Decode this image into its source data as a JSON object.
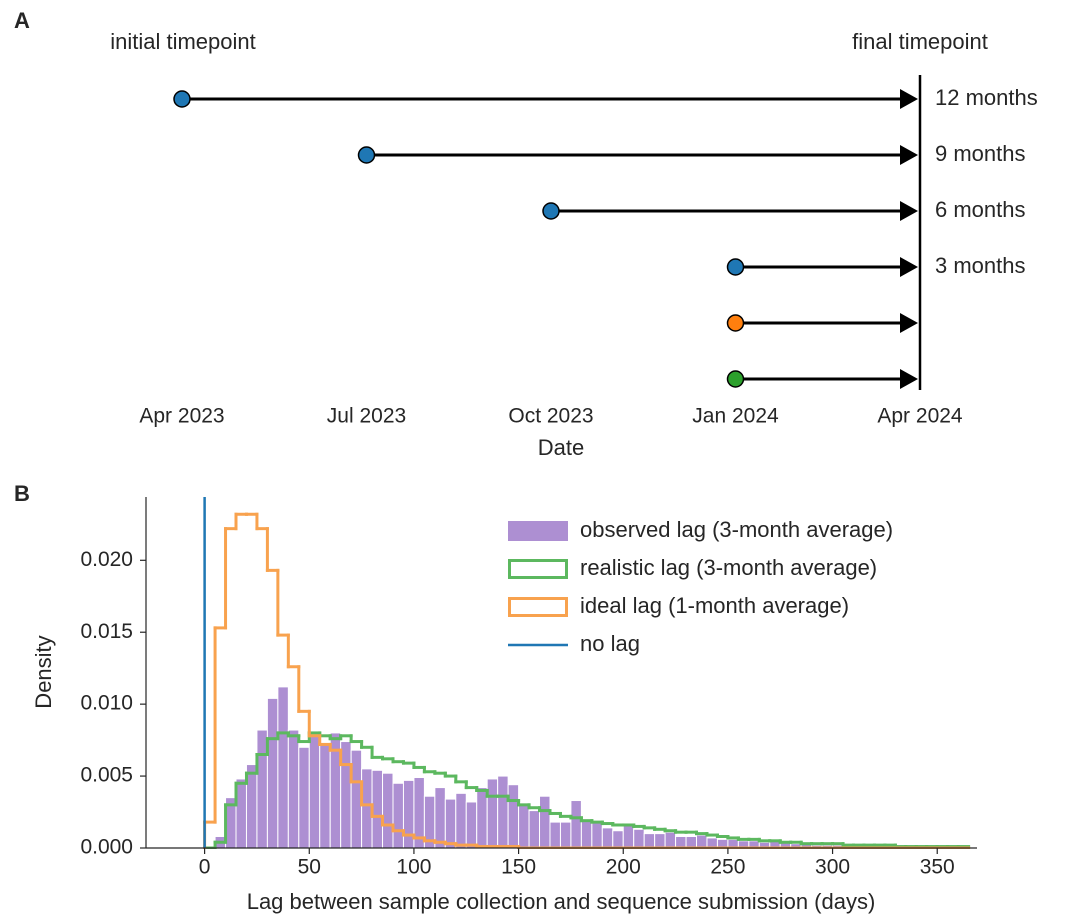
{
  "chart_data": [
    {
      "panel": "A",
      "type": "timeline",
      "xlabel": "Date",
      "start_label": "initial timepoint",
      "end_label": "final timepoint",
      "end": "2024-04",
      "xlim": [
        "2023-04",
        "2024-04"
      ],
      "xticks": [
        {
          "value": "2023-04",
          "label": "Apr 2023"
        },
        {
          "value": "2023-07",
          "label": "Jul 2023"
        },
        {
          "value": "2023-10",
          "label": "Oct 2023"
        },
        {
          "value": "2024-01",
          "label": "Jan 2024"
        },
        {
          "value": "2024-04",
          "label": "Apr 2024"
        }
      ],
      "rows": [
        {
          "start": "2023-04",
          "label": "12 months",
          "color": "#1f77b4"
        },
        {
          "start": "2023-07",
          "label": "9 months",
          "color": "#1f77b4"
        },
        {
          "start": "2023-10",
          "label": "6 months",
          "color": "#1f77b4"
        },
        {
          "start": "2024-01",
          "label": "3 months",
          "color": "#1f77b4"
        },
        {
          "start": "2024-01",
          "color": "#ff7f0e"
        },
        {
          "start": "2024-01",
          "color": "#2ca02c"
        }
      ]
    },
    {
      "panel": "B",
      "type": "histogram",
      "xlabel": "Lag between sample collection and sequence submission (days)",
      "ylabel": "Density",
      "xlim": [
        -28,
        369
      ],
      "ylim": [
        0,
        0.0244
      ],
      "xticks": [
        0,
        50,
        100,
        150,
        200,
        250,
        300,
        350
      ],
      "yticks": [
        {
          "value": 0,
          "label": "0.000"
        },
        {
          "value": 0.005,
          "label": "0.005"
        },
        {
          "value": 0.01,
          "label": "0.010"
        },
        {
          "value": 0.015,
          "label": "0.015"
        },
        {
          "value": 0.02,
          "label": "0.020"
        }
      ],
      "legend": "upper right",
      "bins": [
        0,
        5,
        10,
        15,
        20,
        25,
        30,
        35,
        40,
        45,
        50,
        55,
        60,
        65,
        70,
        75,
        80,
        85,
        90,
        95,
        100,
        105,
        110,
        115,
        120,
        125,
        130,
        135,
        140,
        145,
        150,
        155,
        160,
        165,
        170,
        175,
        180,
        185,
        190,
        195,
        200,
        205,
        210,
        215,
        220,
        225,
        230,
        235,
        240,
        245,
        250,
        255,
        260,
        265,
        270,
        275,
        280,
        285,
        290,
        295,
        300,
        305,
        310,
        315,
        320,
        325,
        330,
        335,
        340,
        345,
        350,
        355,
        360,
        365
      ],
      "series": [
        {
          "name": "observed lag (3-month average)",
          "style": "bar",
          "color": "#ad8fd2",
          "values": [
            0,
            0.0008,
            0.0035,
            0.0048,
            0.0058,
            0.0082,
            0.0104,
            0.0112,
            0.0082,
            0.007,
            0.0078,
            0.0072,
            0.008,
            0.0074,
            0.0068,
            0.0055,
            0.0054,
            0.0052,
            0.0045,
            0.0047,
            0.0049,
            0.0036,
            0.0042,
            0.0034,
            0.0038,
            0.0032,
            0.0042,
            0.0048,
            0.005,
            0.0044,
            0.003,
            0.0026,
            0.0036,
            0.0018,
            0.0018,
            0.0033,
            0.002,
            0.0018,
            0.0014,
            0.0012,
            0.0016,
            0.0013,
            0.001,
            0.001,
            0.0011,
            0.0008,
            0.0008,
            0.0009,
            0.0007,
            0.0006,
            0.0006,
            0.0005,
            0.0005,
            0.0004,
            0.0005,
            0.0004,
            0.0003,
            0.0004,
            0.0002,
            0.0002,
            0.0002,
            0.0002,
            0.0001,
            0.0001,
            0.0001,
            0.0001,
            0.0001,
            0.0001,
            0,
            0.0001,
            0,
            0,
            0
          ]
        },
        {
          "name": "realistic lag (3-month average)",
          "style": "step",
          "color": "#5cb85f",
          "values": [
            0,
            0.0004,
            0.003,
            0.0045,
            0.0052,
            0.0065,
            0.0076,
            0.008,
            0.0078,
            0.0074,
            0.008,
            0.0078,
            0.0076,
            0.0078,
            0.0074,
            0.007,
            0.0063,
            0.0062,
            0.006,
            0.0059,
            0.0056,
            0.0053,
            0.0052,
            0.005,
            0.0046,
            0.0042,
            0.004,
            0.0036,
            0.0036,
            0.0033,
            0.003,
            0.0028,
            0.0026,
            0.0024,
            0.0022,
            0.0021,
            0.0019,
            0.0018,
            0.0017,
            0.0016,
            0.0016,
            0.0015,
            0.0014,
            0.0013,
            0.0012,
            0.0011,
            0.0011,
            0.001,
            0.0009,
            0.0008,
            0.0007,
            0.0006,
            0.0006,
            0.0005,
            0.0005,
            0.0004,
            0.0004,
            0.0003,
            0.0003,
            0.0003,
            0.0003,
            0.0002,
            0.0002,
            0.0002,
            0.0002,
            0.0002,
            0.0001,
            0.0001,
            0.0001,
            0.0001,
            0.0001,
            0.0001,
            0.0001
          ]
        },
        {
          "name": "ideal lag (1-month average)",
          "style": "step",
          "color": "#f8a24e",
          "values": [
            0.0018,
            0.0153,
            0.0222,
            0.0232,
            0.0232,
            0.0222,
            0.0193,
            0.0148,
            0.0126,
            0.0095,
            0.0078,
            0.0072,
            0.0068,
            0.0058,
            0.0046,
            0.003,
            0.0022,
            0.0016,
            0.0012,
            0.0009,
            0.0007,
            0.0005,
            0.0004,
            0.0003,
            0.0002,
            0.0002,
            0.0001,
            0.0001,
            0.0001,
            0.0001,
            0,
            0,
            0,
            0,
            0,
            0,
            0,
            0,
            0,
            0,
            0,
            0,
            0,
            0,
            0,
            0,
            0,
            0,
            0,
            0,
            0,
            0,
            0,
            0,
            0,
            0,
            0,
            0,
            0,
            0,
            0,
            0,
            0,
            0,
            0,
            0,
            0,
            0,
            0,
            0,
            0,
            0,
            0
          ]
        },
        {
          "name": "no lag",
          "style": "vline",
          "color": "#1f77b4",
          "x": 0
        }
      ]
    }
  ]
}
